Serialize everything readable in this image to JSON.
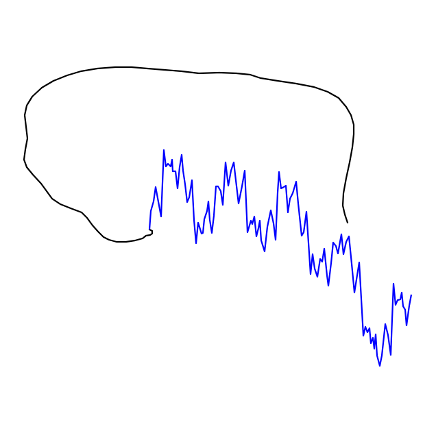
{
  "colors": {
    "background": "#ffffff",
    "outline_stroke": "#000000",
    "trace_stroke": "#0000ff"
  }
}
